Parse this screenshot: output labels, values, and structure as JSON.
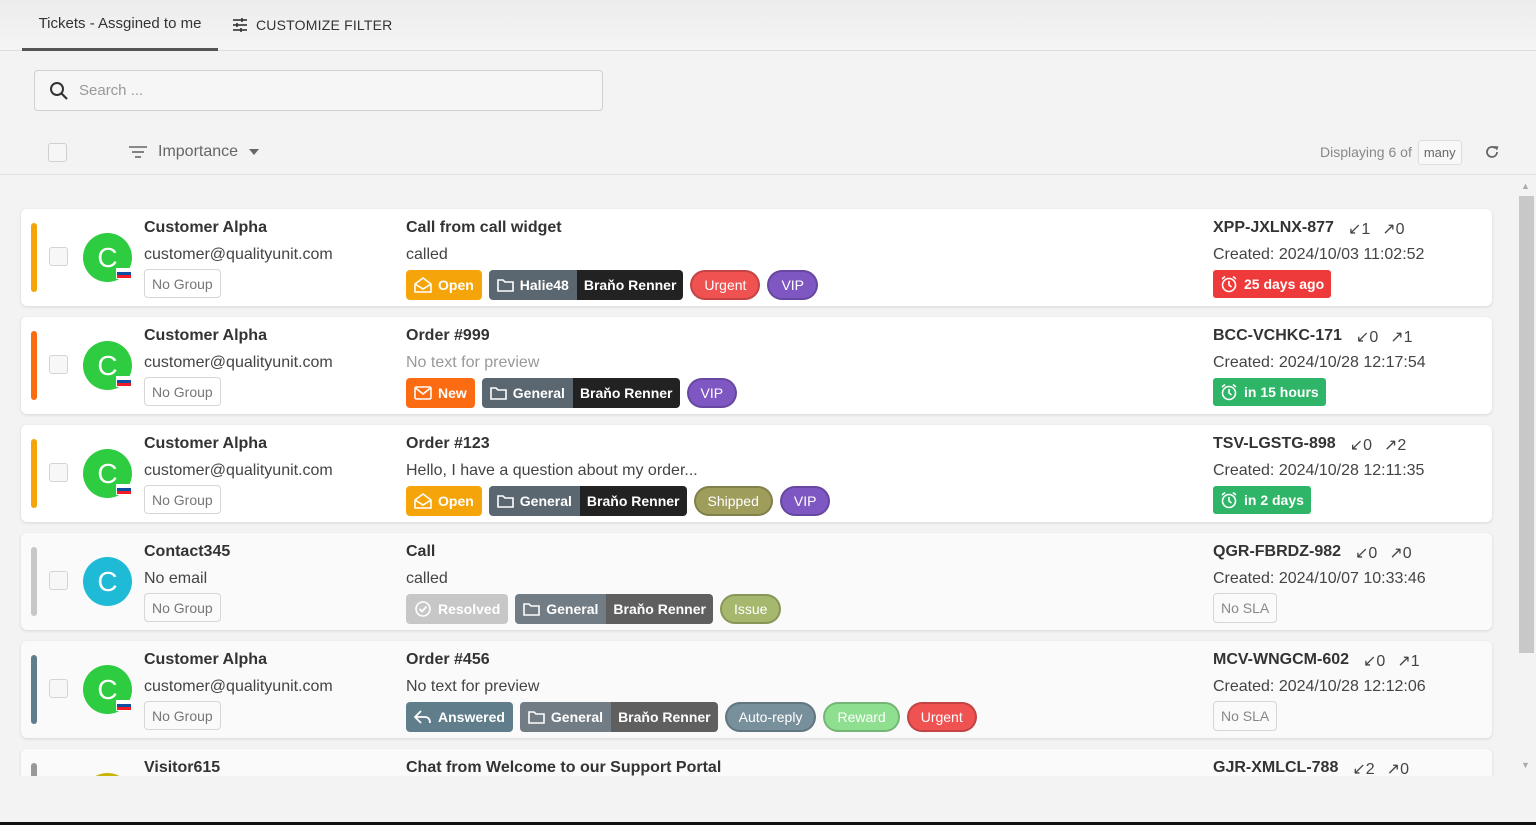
{
  "header": {
    "tab_label": "Tickets - Assgined to me",
    "customize_label": "CUSTOMIZE FILTER"
  },
  "search": {
    "placeholder": "Search ..."
  },
  "list_header": {
    "sort_label": "Importance",
    "displaying_label": "Displaying 6 of",
    "count_label": "many"
  },
  "colors": {
    "open": "#f5a50a",
    "new": "#fb6c12",
    "resolved": "#c7c7c7",
    "answered": "#607d8b",
    "urgent": "#f05252",
    "vip": "#7e57c2",
    "shipped": "#9e9d5c",
    "issue": "#a6b86d",
    "auto_reply": "#78909c",
    "reward": "#8fdf90",
    "sla_overdue": "#ee3a3a",
    "sla_ok": "#2eb567",
    "avatar_green": "#2ecc40",
    "avatar_cyan": "#1ebad6"
  },
  "tickets": [
    {
      "customer": "Customer Alpha",
      "email": "customer@qualityunit.com",
      "group": "No Group",
      "avatar_letter": "C",
      "subject": "Call from call widget",
      "preview": "called",
      "status": "Open",
      "department": "Halie48",
      "agent": "Braňo Renner",
      "tags": [
        "Urgent",
        "VIP"
      ],
      "code": "XPP-JXLNX-877",
      "in_count": "1",
      "out_count": "0",
      "created": "Created: 2024/10/03 11:02:52",
      "sla": "25 days ago"
    },
    {
      "customer": "Customer Alpha",
      "email": "customer@qualityunit.com",
      "group": "No Group",
      "avatar_letter": "C",
      "subject": "Order #999",
      "preview": "No text for preview",
      "status": "New",
      "department": "General",
      "agent": "Braňo Renner",
      "tags": [
        "VIP"
      ],
      "code": "BCC-VCHKC-171",
      "in_count": "0",
      "out_count": "1",
      "created": "Created: 2024/10/28 12:17:54",
      "sla": "in 15 hours"
    },
    {
      "customer": "Customer Alpha",
      "email": "customer@qualityunit.com",
      "group": "No Group",
      "avatar_letter": "C",
      "subject": "Order #123",
      "preview": "Hello, I have a question about my order...",
      "status": "Open",
      "department": "General",
      "agent": "Braňo Renner",
      "tags": [
        "Shipped",
        "VIP"
      ],
      "code": "TSV-LGSTG-898",
      "in_count": "0",
      "out_count": "2",
      "created": "Created: 2024/10/28 12:11:35",
      "sla": "in 2 days"
    },
    {
      "customer": "Contact345",
      "email": "No email",
      "group": "No Group",
      "avatar_letter": "C",
      "subject": "Call",
      "preview": "called",
      "status": "Resolved",
      "department": "General",
      "agent": "Braňo Renner",
      "tags": [
        "Issue"
      ],
      "code": "QGR-FBRDZ-982",
      "in_count": "0",
      "out_count": "0",
      "created": "Created: 2024/10/07 10:33:46",
      "sla": "No SLA"
    },
    {
      "customer": "Customer Alpha",
      "email": "customer@qualityunit.com",
      "group": "No Group",
      "avatar_letter": "C",
      "subject": "Order #456",
      "preview": "No text for preview",
      "status": "Answered",
      "department": "General",
      "agent": "Braňo Renner",
      "tags": [
        "Auto-reply",
        "Reward",
        "Urgent"
      ],
      "code": "MCV-WNGCM-602",
      "in_count": "0",
      "out_count": "1",
      "created": "Created: 2024/10/28 12:12:06",
      "sla": "No SLA"
    },
    {
      "customer": "Visitor615",
      "subject": "Chat from Welcome to our Support Portal",
      "code": "GJR-XMLCL-788",
      "in_count": "2",
      "out_count": "0"
    }
  ]
}
